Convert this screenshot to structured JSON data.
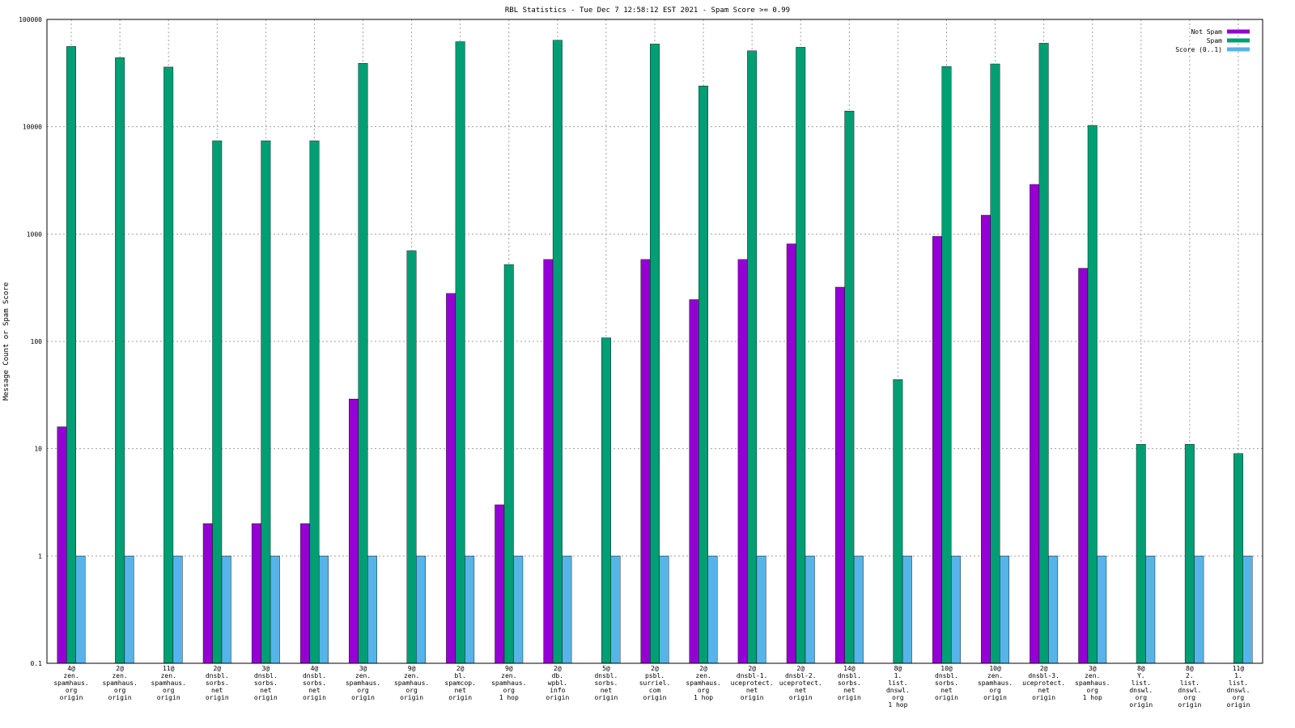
{
  "chart_data": {
    "type": "bar",
    "title": "RBL Statistics - Tue Dec  7 12:58:12 EST 2021 - Spam Score >= 0.99",
    "xlabel": "",
    "ylabel": "Message Count or Spam Score",
    "yscale": "log",
    "ylim": [
      0.1,
      100000
    ],
    "yticks": [
      "0.1",
      "1",
      "10",
      "100",
      "1000",
      "10000",
      "100000"
    ],
    "grid": true,
    "legend_position": "top-right",
    "categories": [
      [
        "4@",
        "zen.",
        "spamhaus.",
        "org",
        "origin"
      ],
      [
        "2@",
        "zen.",
        "spamhaus.",
        "org",
        "origin"
      ],
      [
        "11@",
        "zen.",
        "spamhaus.",
        "org",
        "origin"
      ],
      [
        "2@",
        "dnsbl.",
        "sorbs.",
        "net",
        "origin"
      ],
      [
        "3@",
        "dnsbl.",
        "sorbs.",
        "net",
        "origin"
      ],
      [
        "4@",
        "dnsbl.",
        "sorbs.",
        "net",
        "origin"
      ],
      [
        "3@",
        "zen.",
        "spamhaus.",
        "org",
        "origin"
      ],
      [
        "9@",
        "zen.",
        "spamhaus.",
        "org",
        "origin"
      ],
      [
        "2@",
        "bl.",
        "spamcop.",
        "net",
        "origin"
      ],
      [
        "9@",
        "zen.",
        "spamhaus.",
        "org",
        "1 hop"
      ],
      [
        "2@",
        "db.",
        "wpbl.",
        "info",
        "origin"
      ],
      [
        "5@",
        "dnsbl.",
        "sorbs.",
        "net",
        "origin"
      ],
      [
        "2@",
        "psbl.",
        "surriel.",
        "com",
        "origin"
      ],
      [
        "2@",
        "zen.",
        "spamhaus.",
        "org",
        "1 hop"
      ],
      [
        "2@",
        "dnsbl-1.",
        "uceprotect.",
        "net",
        "origin"
      ],
      [
        "2@",
        "dnsbl-2.",
        "uceprotect.",
        "net",
        "origin"
      ],
      [
        "14@",
        "dnsbl.",
        "sorbs.",
        "net",
        "origin"
      ],
      [
        "8@",
        "1.",
        "list.",
        "dnswl.",
        "org",
        "1 hop"
      ],
      [
        "10@",
        "dnsbl.",
        "sorbs.",
        "net",
        "origin"
      ],
      [
        "10@",
        "zen.",
        "spamhaus.",
        "org",
        "origin"
      ],
      [
        "2@",
        "dnsbl-3.",
        "uceprotect.",
        "net",
        "origin"
      ],
      [
        "3@",
        "zen.",
        "spamhaus.",
        "org",
        "1 hop"
      ],
      [
        "8@",
        "Y.",
        "list.",
        "dnswl.",
        "org",
        "origin"
      ],
      [
        "8@",
        "2.",
        "list.",
        "dnswl.",
        "org",
        "origin"
      ],
      [
        "11@",
        "1.",
        "list.",
        "dnswl.",
        "org",
        "origin"
      ]
    ],
    "series": [
      {
        "name": "Not Spam",
        "color": "#9400d3",
        "values": [
          16,
          null,
          null,
          2,
          2,
          2,
          29,
          null,
          280,
          3,
          580,
          null,
          580,
          245,
          580,
          810,
          320,
          null,
          950,
          1500,
          2900,
          480,
          null,
          null,
          null
        ]
      },
      {
        "name": "Spam",
        "color": "#009e73",
        "values": [
          56000,
          44000,
          36000,
          7400,
          7400,
          7400,
          39000,
          700,
          62000,
          520,
          64000,
          108,
          59000,
          24000,
          51000,
          55000,
          14000,
          44,
          36500,
          38500,
          60000,
          10300,
          11,
          11,
          9
        ]
      },
      {
        "name": "Score (0..1)",
        "color": "#56b4e9",
        "values": [
          1,
          1,
          1,
          1,
          1,
          1,
          1,
          1,
          1,
          1,
          1,
          1,
          1,
          1,
          1,
          1,
          1,
          1,
          1,
          1,
          1,
          1,
          1,
          1,
          1
        ]
      }
    ]
  }
}
